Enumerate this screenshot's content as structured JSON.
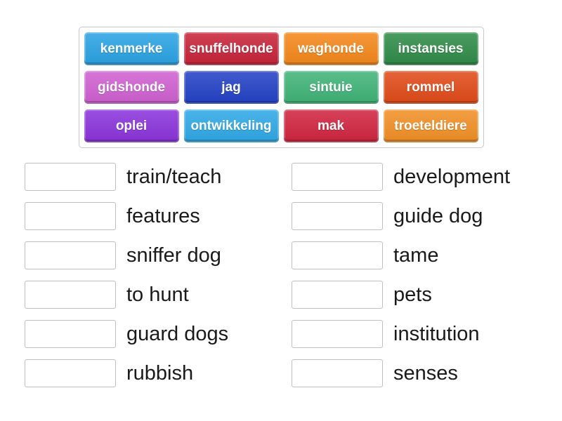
{
  "word_bank": {
    "tiles": [
      {
        "label": "kenmerke",
        "color": "#2aa2e2"
      },
      {
        "label": "snuffelhonde",
        "color": "#c72339"
      },
      {
        "label": "waghonde",
        "color": "#f4871a"
      },
      {
        "label": "instansies",
        "color": "#2e8b47"
      },
      {
        "label": "gidshonde",
        "color": "#cf60d1"
      },
      {
        "label": "jag",
        "color": "#2341c5"
      },
      {
        "label": "sintuie",
        "color": "#3fb377"
      },
      {
        "label": "rommel",
        "color": "#e04a18"
      },
      {
        "label": "oplei",
        "color": "#8a33da"
      },
      {
        "label": "ontwikkeling",
        "color": "#2ea8e6"
      },
      {
        "label": "mak",
        "color": "#d0243f"
      },
      {
        "label": "troeteldiere",
        "color": "#f18f25"
      }
    ]
  },
  "match_list": {
    "items": [
      {
        "label": "train/teach"
      },
      {
        "label": "development"
      },
      {
        "label": "features"
      },
      {
        "label": "guide dog"
      },
      {
        "label": "sniffer dog"
      },
      {
        "label": "tame"
      },
      {
        "label": "to hunt"
      },
      {
        "label": "pets"
      },
      {
        "label": "guard dogs"
      },
      {
        "label": "institution"
      },
      {
        "label": "rubbish"
      },
      {
        "label": "senses"
      }
    ]
  }
}
